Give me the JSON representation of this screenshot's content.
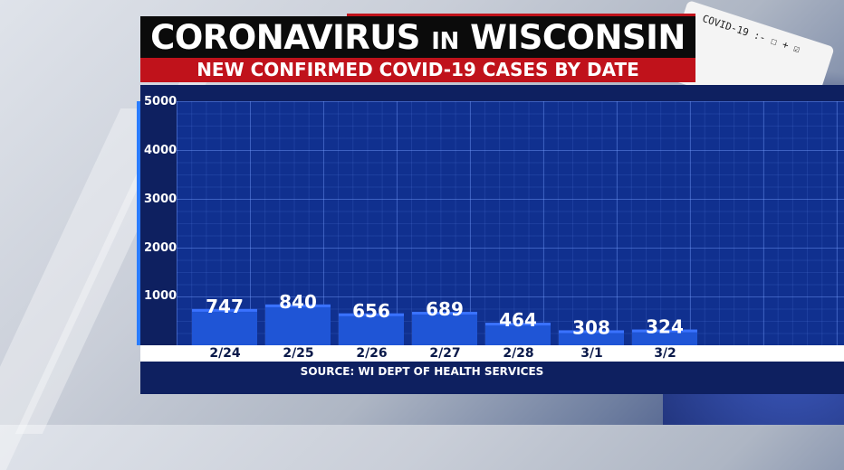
{
  "header": {
    "title_part1": "CORONAVIRUS",
    "title_part2": "IN",
    "title_part3": "WISCONSIN",
    "subtitle": "NEW CONFIRMED COVID-19 CASES BY DATE"
  },
  "background": {
    "test_card_text": "COVID-19 :- ☐ + ☑"
  },
  "footer": {
    "source": "SOURCE: WI DEPT OF HEALTH SERVICES"
  },
  "chart_data": {
    "type": "bar",
    "title": "NEW CONFIRMED COVID-19 CASES BY DATE",
    "categories": [
      "2/24",
      "2/25",
      "2/26",
      "2/27",
      "2/28",
      "3/1",
      "3/2"
    ],
    "values": [
      747,
      840,
      656,
      689,
      464,
      308,
      324
    ],
    "yticks": [
      "1000",
      "2000",
      "3000",
      "4000",
      "5000"
    ],
    "ylim": [
      0,
      5000
    ],
    "grid": true,
    "bar_color": "#1f55d6",
    "bar_top_color": "#3a72ff"
  }
}
